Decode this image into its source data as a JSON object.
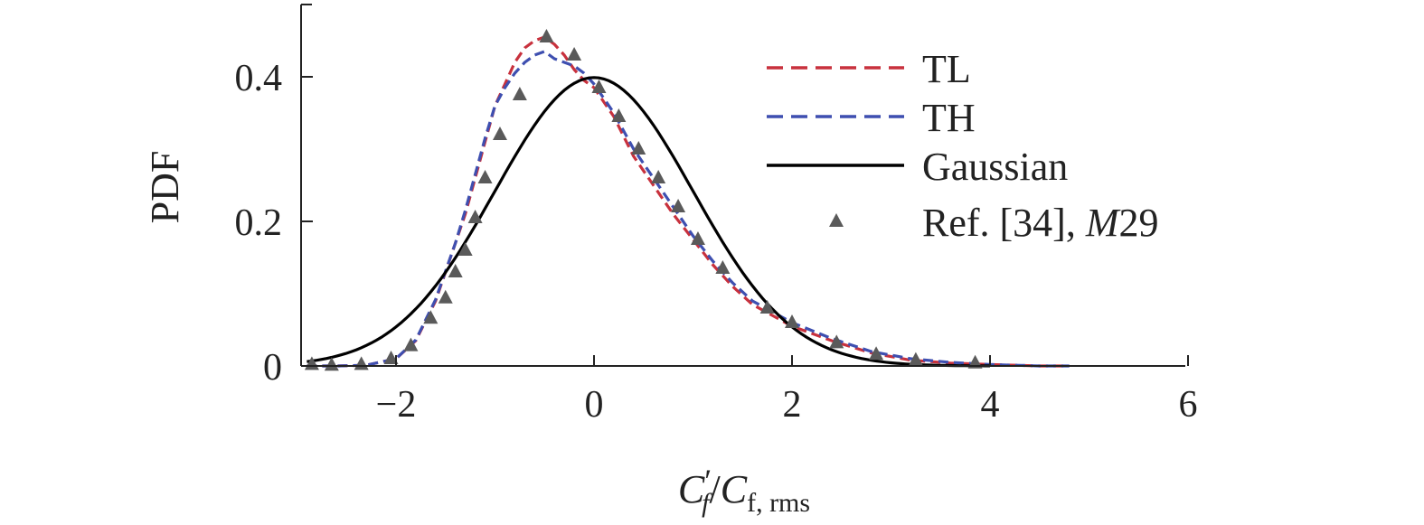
{
  "chart_data": {
    "type": "line",
    "xlabel": "C′f/Cf, rms",
    "xlabel_parts": {
      "main1": "C",
      "prime": "′",
      "sub1": "f",
      "slash": "/",
      "main2": "C",
      "sub2": "f, rms"
    },
    "ylabel": "PDF",
    "xlim": [
      -3,
      6
    ],
    "ylim": [
      0,
      0.5
    ],
    "x_ticks": [
      -2,
      0,
      2,
      4,
      6
    ],
    "x_tick_labels": [
      "−2",
      "0",
      "2",
      "4",
      "6"
    ],
    "y_ticks": [
      0,
      0.2,
      0.4
    ],
    "y_tick_labels": [
      "0",
      "0.2",
      "0.4"
    ],
    "grid": false,
    "legend_position": "top-right",
    "series": [
      {
        "name": "TL",
        "style": "dashed",
        "color": "#c8313d",
        "x": [
          -2.9,
          -2.6,
          -2.3,
          -2.0,
          -1.8,
          -1.6,
          -1.4,
          -1.3,
          -1.2,
          -1.1,
          -1.0,
          -0.9,
          -0.8,
          -0.7,
          -0.6,
          -0.5,
          -0.4,
          -0.3,
          -0.2,
          -0.1,
          0.0,
          0.2,
          0.4,
          0.6,
          0.8,
          1.0,
          1.2,
          1.4,
          1.6,
          1.8,
          2.0,
          2.4,
          2.8,
          3.2,
          3.6,
          4.0,
          4.5,
          4.8
        ],
        "y": [
          0.0,
          0.0,
          0.001,
          0.01,
          0.035,
          0.09,
          0.17,
          0.21,
          0.26,
          0.31,
          0.36,
          0.39,
          0.42,
          0.44,
          0.45,
          0.455,
          0.445,
          0.43,
          0.41,
          0.395,
          0.385,
          0.345,
          0.29,
          0.25,
          0.21,
          0.175,
          0.14,
          0.11,
          0.085,
          0.07,
          0.055,
          0.035,
          0.018,
          0.008,
          0.004,
          0.002,
          0.0,
          0.0
        ]
      },
      {
        "name": "TH",
        "style": "dashed",
        "color": "#3e4fb0",
        "x": [
          -2.9,
          -2.6,
          -2.3,
          -2.0,
          -1.8,
          -1.6,
          -1.4,
          -1.3,
          -1.2,
          -1.1,
          -1.0,
          -0.9,
          -0.8,
          -0.7,
          -0.6,
          -0.5,
          -0.4,
          -0.3,
          -0.2,
          -0.1,
          0.0,
          0.2,
          0.4,
          0.6,
          0.8,
          1.0,
          1.2,
          1.4,
          1.6,
          1.8,
          2.0,
          2.4,
          2.8,
          3.2,
          3.6,
          4.0,
          4.5,
          4.8
        ],
        "y": [
          0.0,
          0.0,
          0.001,
          0.01,
          0.036,
          0.092,
          0.17,
          0.215,
          0.265,
          0.315,
          0.36,
          0.385,
          0.405,
          0.42,
          0.43,
          0.435,
          0.425,
          0.42,
          0.415,
          0.405,
          0.39,
          0.35,
          0.3,
          0.26,
          0.22,
          0.18,
          0.145,
          0.115,
          0.09,
          0.075,
          0.06,
          0.038,
          0.02,
          0.01,
          0.005,
          0.002,
          0.0,
          0.0
        ]
      },
      {
        "name": "Gaussian",
        "style": "solid",
        "color": "#000000",
        "function": "gaussian",
        "mean": 0,
        "std": 1,
        "x_range": [
          -2.9,
          4.0
        ]
      },
      {
        "name": "Ref. [34], M29",
        "name_parts": {
          "prefix": "Ref. [34], ",
          "italic": "M",
          "suffix": "29"
        },
        "style": "markers",
        "marker": "triangle",
        "color": "#5a5a5a",
        "x": [
          -2.85,
          -2.65,
          -2.35,
          -2.05,
          -1.85,
          -1.65,
          -1.5,
          -1.4,
          -1.3,
          -1.2,
          -1.1,
          -0.95,
          -0.75,
          -0.48,
          -0.2,
          0.05,
          0.25,
          0.45,
          0.65,
          0.85,
          1.05,
          1.3,
          1.75,
          2.0,
          2.45,
          2.85,
          3.25,
          3.85
        ],
        "y": [
          0.002,
          0.001,
          0.002,
          0.01,
          0.028,
          0.066,
          0.094,
          0.13,
          0.16,
          0.205,
          0.26,
          0.32,
          0.375,
          0.455,
          0.43,
          0.385,
          0.345,
          0.3,
          0.26,
          0.22,
          0.175,
          0.135,
          0.08,
          0.06,
          0.032,
          0.016,
          0.008,
          0.004
        ]
      }
    ]
  }
}
